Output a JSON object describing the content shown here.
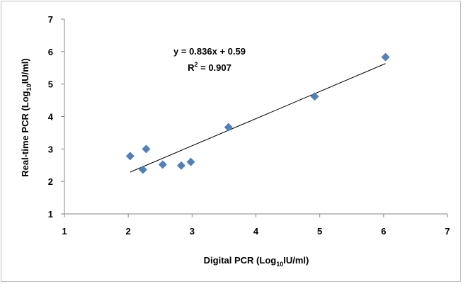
{
  "chart_data": {
    "type": "scatter",
    "title": "",
    "xlabel": {
      "pre": "Digital PCR (Log",
      "sub": "10",
      "post": "IU/ml)"
    },
    "ylabel": {
      "pre": "Real-time PCR (Log",
      "sub": "10",
      "post": "IU/ml)"
    },
    "xlim": [
      1,
      7
    ],
    "ylim": [
      1,
      7
    ],
    "xticks": [
      "1",
      "2",
      "3",
      "4",
      "5",
      "6",
      "7"
    ],
    "yticks": [
      "1",
      "2",
      "3",
      "4",
      "5",
      "6",
      "7"
    ],
    "grid": false,
    "marker": "diamond",
    "color": "#4f81bd",
    "points": [
      {
        "x": 2.03,
        "y": 2.78
      },
      {
        "x": 2.23,
        "y": 2.36
      },
      {
        "x": 2.28,
        "y": 3.0
      },
      {
        "x": 2.54,
        "y": 2.52
      },
      {
        "x": 2.83,
        "y": 2.49
      },
      {
        "x": 2.98,
        "y": 2.6
      },
      {
        "x": 3.57,
        "y": 3.67
      },
      {
        "x": 4.92,
        "y": 4.62
      },
      {
        "x": 6.03,
        "y": 5.83
      }
    ],
    "trendline": {
      "slope": 0.836,
      "intercept": 0.59,
      "x_range": [
        2.03,
        6.03
      ]
    },
    "equation": "y = 0.836x + 0.59",
    "r2_label": {
      "pre": "R",
      "sup": "2",
      "post": " = 0.907"
    }
  }
}
